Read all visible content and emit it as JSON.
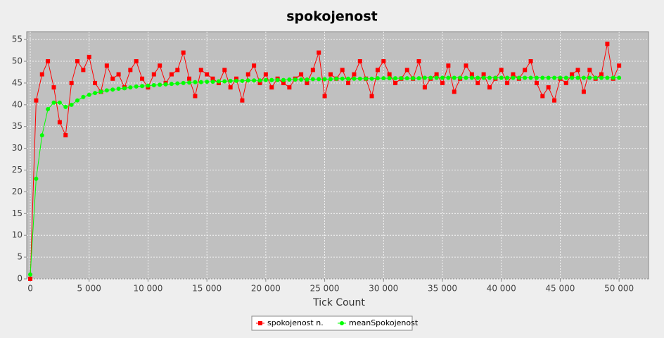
{
  "chart_data": {
    "type": "line",
    "title": "spokojenost",
    "x_label": "Tick Count",
    "x": [
      0,
      500,
      1000,
      1500,
      2000,
      2500,
      3000,
      3500,
      4000,
      4500,
      5000,
      5500,
      6000,
      6500,
      7000,
      7500,
      8000,
      8500,
      9000,
      9500,
      10000,
      10500,
      11000,
      11500,
      12000,
      12500,
      13000,
      13500,
      14000,
      14500,
      15000,
      15500,
      16000,
      16500,
      17000,
      17500,
      18000,
      18500,
      19000,
      19500,
      20000,
      20500,
      21000,
      21500,
      22000,
      22500,
      23000,
      23500,
      24000,
      24500,
      25000,
      25500,
      26000,
      26500,
      27000,
      27500,
      28000,
      28500,
      29000,
      29500,
      30000,
      30500,
      31000,
      31500,
      32000,
      32500,
      33000,
      33500,
      34000,
      34500,
      35000,
      35500,
      36000,
      36500,
      37000,
      37500,
      38000,
      38500,
      39000,
      39500,
      40000,
      40500,
      41000,
      41500,
      42000,
      42500,
      43000,
      43500,
      44000,
      44500,
      45000,
      45500,
      46000,
      46500,
      47000,
      47500,
      48000,
      48500,
      49000,
      49500,
      50000
    ],
    "series": [
      {
        "name": "spokojenost n.",
        "color": "#ff0000",
        "marker": "square",
        "values": [
          0,
          41,
          47,
          50,
          44,
          36,
          33,
          45,
          50,
          48,
          51,
          45,
          43,
          49,
          46,
          47,
          44,
          48,
          50,
          46,
          44,
          47,
          49,
          45,
          47,
          48,
          52,
          46,
          42,
          48,
          47,
          46,
          45,
          48,
          44,
          46,
          41,
          47,
          49,
          45,
          47,
          44,
          46,
          45,
          44,
          46,
          47,
          45,
          48,
          52,
          42,
          47,
          46,
          48,
          45,
          47,
          50,
          46,
          42,
          48,
          50,
          47,
          45,
          46,
          48,
          46,
          50,
          44,
          46,
          47,
          45,
          49,
          43,
          46,
          49,
          47,
          45,
          47,
          44,
          46,
          48,
          45,
          47,
          46,
          48,
          50,
          45,
          42,
          44,
          41,
          46,
          45,
          47,
          48,
          43,
          48,
          46,
          47,
          54,
          46,
          49
        ]
      },
      {
        "name": "meanSpokojenost",
        "color": "#00ff00",
        "marker": "circle",
        "values": [
          1,
          23,
          33,
          39,
          40.5,
          40.5,
          39.5,
          40,
          41,
          41.8,
          42.3,
          42.7,
          43,
          43.3,
          43.5,
          43.7,
          43.8,
          44,
          44.2,
          44.3,
          44.4,
          44.5,
          44.6,
          44.7,
          44.8,
          44.9,
          45,
          45.1,
          45.2,
          45.2,
          45.3,
          45.3,
          45.4,
          45.4,
          45.5,
          45.5,
          45.5,
          45.6,
          45.6,
          45.6,
          45.7,
          45.7,
          45.7,
          45.7,
          45.8,
          45.8,
          45.8,
          45.8,
          45.9,
          45.9,
          45.9,
          45.9,
          46,
          46,
          46,
          46,
          46,
          46,
          46,
          46.1,
          46.1,
          46.1,
          46.1,
          46.1,
          46.1,
          46.1,
          46.1,
          46.2,
          46.2,
          46.2,
          46.2,
          46.2,
          46.2,
          46.2,
          46.2,
          46.2,
          46.2,
          46.2,
          46.2,
          46.2,
          46.2,
          46.2,
          46.2,
          46.2,
          46.2,
          46.2,
          46.2,
          46.2,
          46.2,
          46.2,
          46.2,
          46.2,
          46.2,
          46.2,
          46.2,
          46.2,
          46.2,
          46.2,
          46.2,
          46.2,
          46.2
        ]
      }
    ],
    "xlim": [
      -300,
      52500
    ],
    "xticks": [
      0,
      {
        "value": 5000,
        "label": "5 000"
      },
      {
        "value": 10000,
        "label": "10 000"
      },
      {
        "value": 15000,
        "label": "15 000"
      },
      {
        "value": 20000,
        "label": "20 000"
      },
      {
        "value": 25000,
        "label": "25 000"
      },
      {
        "value": 30000,
        "label": "30 000"
      },
      {
        "value": 35000,
        "label": "35 000"
      },
      {
        "value": 40000,
        "label": "40 000"
      },
      {
        "value": 45000,
        "label": "45 000"
      },
      {
        "value": 50000,
        "label": "50 000"
      }
    ],
    "ylim": [
      0,
      56.8
    ],
    "yticks": [
      0,
      5,
      10,
      15,
      20,
      25,
      30,
      35,
      40,
      45,
      50,
      55
    ],
    "grid": true,
    "legend": "bottom"
  }
}
